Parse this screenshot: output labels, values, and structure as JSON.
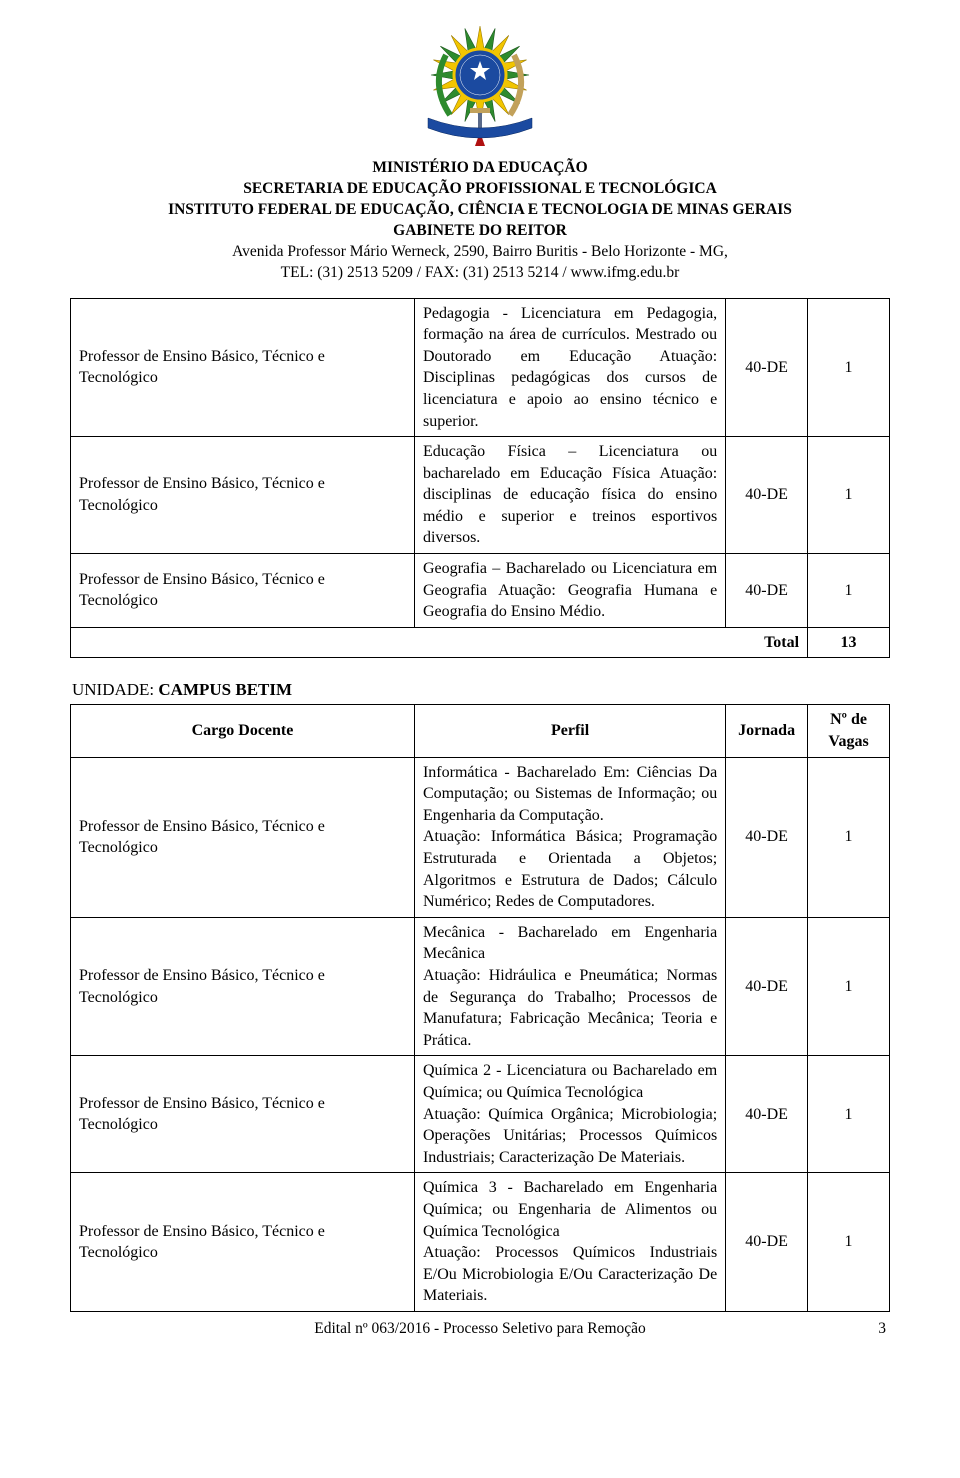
{
  "crest": {
    "blue": "#1b4aa0",
    "yellow": "#f2c500",
    "green": "#2e8b2e",
    "red": "#b01010",
    "tan": "#c2a15a"
  },
  "header": {
    "l1": "MINISTÉRIO DA EDUCAÇÃO",
    "l2": "SECRETARIA DE EDUCAÇÃO PROFISSIONAL E TECNOLÓGICA",
    "l3": "INSTITUTO FEDERAL DE EDUCAÇÃO, CIÊNCIA E TECNOLOGIA DE MINAS GERAIS",
    "l4": "GABINETE DO REITOR",
    "l5": "Avenida Professor Mário Werneck, 2590, Bairro Buritis - Belo Horizonte - MG,",
    "l6": "TEL: (31) 2513 5209 / FAX: (31) 2513 5214 /  www.ifmg.edu.br"
  },
  "table1": {
    "rows": [
      {
        "cargo": "Professor de Ensino Básico, Técnico e Tecnológico",
        "perfil": "Pedagogia - Licenciatura em Pedagogia, formação na área de currículos. Mestrado ou Doutorado em Educação Atuação: Disciplinas pedagógicas dos cursos de licenciatura e apoio ao ensino técnico e superior.",
        "jornada": "40-DE",
        "vagas": "1"
      },
      {
        "cargo": "Professor de Ensino Básico, Técnico e Tecnológico",
        "perfil": "Educação Física – Licenciatura ou bacharelado em Educação Física Atuação: disciplinas de educação física do ensino médio e superior e  treinos esportivos diversos.",
        "jornada": "40-DE",
        "vagas": "1"
      },
      {
        "cargo": "Professor de Ensino Básico, Técnico e Tecnológico",
        "perfil": "Geografia – Bacharelado ou Licenciatura em Geografia Atuação: Geografia Humana e Geografia do Ensino Médio.",
        "jornada": "40-DE",
        "vagas": "1"
      }
    ],
    "total_label": "Total",
    "total_value": "13"
  },
  "section2": {
    "unidade_prefix": "UNIDADE: ",
    "campus": "CAMPUS BETIM",
    "headers": {
      "cargo": "Cargo Docente",
      "perfil": "Perfil",
      "jornada": "Jornada",
      "vagas": "Nº de Vagas"
    },
    "rows": [
      {
        "cargo": "Professor de Ensino Básico, Técnico e Tecnológico",
        "perfil": "Informática - Bacharelado Em: Ciências Da Computação; ou Sistemas de Informação; ou Engenharia da Computação.\nAtuação: Informática Básica; Programação Estruturada e Orientada a Objetos; Algoritmos e Estrutura de Dados; Cálculo Numérico; Redes de Computadores.",
        "jornada": "40-DE",
        "vagas": "1"
      },
      {
        "cargo": "Professor de Ensino Básico, Técnico e Tecnológico",
        "perfil": "Mecânica - Bacharelado em Engenharia Mecânica\nAtuação: Hidráulica e Pneumática; Normas de Segurança do Trabalho; Processos de Manufatura; Fabricação Mecânica; Teoria e Prática.",
        "jornada": "40-DE",
        "vagas": "1"
      },
      {
        "cargo": "Professor de Ensino Básico, Técnico e Tecnológico",
        "perfil": "Química 2 - Licenciatura ou Bacharelado em Química; ou Química Tecnológica\nAtuação: Química Orgânica; Microbiologia; Operações Unitárias; Processos Químicos Industriais; Caracterização De Materiais.",
        "jornada": "40-DE",
        "vagas": "1"
      },
      {
        "cargo": "Professor de Ensino Básico, Técnico e Tecnológico",
        "perfil": "Química 3 - Bacharelado em Engenharia Química; ou Engenharia de Alimentos ou Química Tecnológica\nAtuação: Processos Químicos Industriais E/Ou Microbiologia E/Ou Caracterização De Materiais.",
        "jornada": "40-DE",
        "vagas": "1"
      }
    ]
  },
  "footer": {
    "text": "Edital nº 063/2016 - Processo Seletivo para Remoção",
    "page": "3"
  }
}
